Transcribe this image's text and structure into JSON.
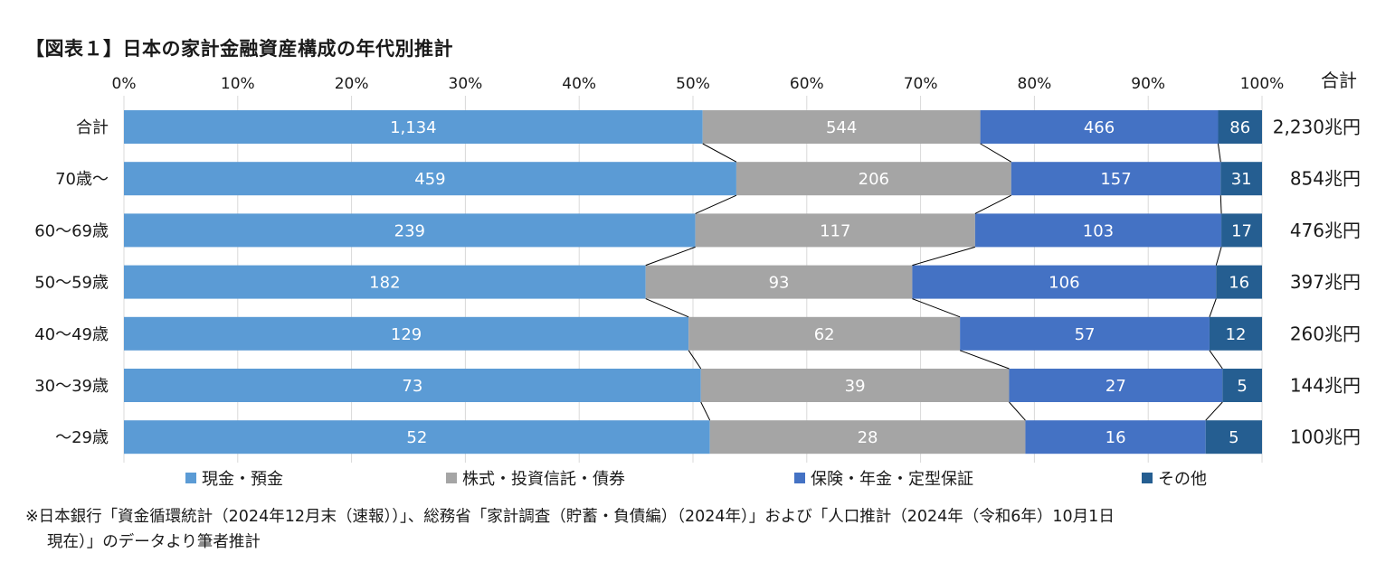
{
  "chart_data": {
    "type": "bar",
    "orientation": "horizontal",
    "stacked": "percent",
    "title": "【図表１】日本の家計金融資産構成の年代別推計",
    "categories": [
      "合計",
      "70歳～",
      "60～69歳",
      "50～59歳",
      "40～49歳",
      "30～39歳",
      "～29歳"
    ],
    "series": [
      {
        "name": "現金・預金",
        "color": "#5b9bd5",
        "values": [
          1134,
          459,
          239,
          182,
          129,
          73,
          52
        ],
        "labels": [
          "1,134",
          "459",
          "239",
          "182",
          "129",
          "73",
          "52"
        ]
      },
      {
        "name": "株式・投資信託・債券",
        "color": "#a5a5a5",
        "values": [
          544,
          206,
          117,
          93,
          62,
          39,
          28
        ],
        "labels": [
          "544",
          "206",
          "117",
          "93",
          "62",
          "39",
          "28"
        ]
      },
      {
        "name": "保険・年金・定型保証",
        "color": "#4472c4",
        "values": [
          466,
          157,
          103,
          106,
          57,
          27,
          16
        ],
        "labels": [
          "466",
          "157",
          "103",
          "106",
          "57",
          "27",
          "16"
        ]
      },
      {
        "name": "その他",
        "color": "#255e91",
        "values": [
          86,
          31,
          17,
          16,
          12,
          5,
          5
        ],
        "labels": [
          "86",
          "31",
          "17",
          "16",
          "12",
          "5",
          "5"
        ]
      }
    ],
    "totals": [
      "2,230兆円",
      "854兆円",
      "476兆円",
      "397兆円",
      "260兆円",
      "144兆円",
      "100兆円"
    ],
    "totals_header": "合計",
    "x_ticks": [
      "0%",
      "10%",
      "20%",
      "30%",
      "40%",
      "50%",
      "60%",
      "70%",
      "80%",
      "90%",
      "100%"
    ],
    "xlim": [
      0,
      100
    ],
    "grid": true,
    "legend_position": "bottom",
    "connector_lines": true
  },
  "source_note": {
    "line1": "※日本銀行「資金循環統計（2024年12月末（速報））」、総務省「家計調査（貯蓄・負債編）（2024年）」および「人口推計（2024年（令和6年）10月1日",
    "line2": "現在）」のデータより筆者推計"
  }
}
